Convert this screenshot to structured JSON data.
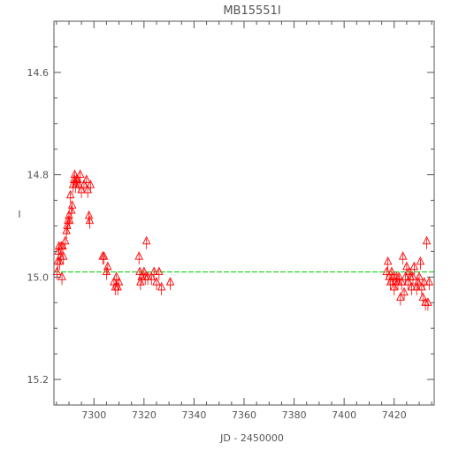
{
  "chart_data": {
    "type": "scatter",
    "title": "MB15551I",
    "xlabel": "JD - 2450000",
    "ylabel": "I",
    "xlim": [
      7284,
      7436
    ],
    "ylim": [
      15.25,
      14.5
    ],
    "y_inverted": true,
    "xticks": [
      7300,
      7320,
      7340,
      7360,
      7380,
      7400,
      7420
    ],
    "yticks": [
      14.6,
      14.8,
      15.0,
      15.2
    ],
    "ytick_labels": [
      "14.6",
      "14.8",
      "15.0",
      "15.2"
    ],
    "grid": false,
    "marker": "triangle",
    "colors": {
      "points": "#ff0000",
      "baseline": "#00cc00",
      "axes": "#555555"
    },
    "baseline": {
      "y": 14.99
    },
    "series": [
      {
        "points": [
          [
            7285.2,
            14.99
          ],
          [
            7285.5,
            14.97
          ],
          [
            7285.8,
            14.95
          ],
          [
            7286.0,
            14.94
          ],
          [
            7286.3,
            14.97
          ],
          [
            7286.6,
            14.96
          ],
          [
            7286.9,
            14.94
          ],
          [
            7287.2,
            15.0
          ],
          [
            7287.5,
            14.94
          ],
          [
            7287.8,
            14.96
          ],
          [
            7288.5,
            14.93
          ],
          [
            7289.0,
            14.91
          ],
          [
            7289.3,
            14.9
          ],
          [
            7289.6,
            14.89
          ],
          [
            7290.0,
            14.88
          ],
          [
            7290.3,
            14.89
          ],
          [
            7290.6,
            14.84
          ],
          [
            7291.0,
            14.87
          ],
          [
            7291.3,
            14.86
          ],
          [
            7291.6,
            14.82
          ],
          [
            7292.0,
            14.81
          ],
          [
            7292.3,
            14.8
          ],
          [
            7292.6,
            14.82
          ],
          [
            7293.0,
            14.81
          ],
          [
            7293.5,
            14.81
          ],
          [
            7294.0,
            14.82
          ],
          [
            7294.5,
            14.8
          ],
          [
            7295.0,
            14.83
          ],
          [
            7296.0,
            14.82
          ],
          [
            7297.0,
            14.81
          ],
          [
            7297.5,
            14.83
          ],
          [
            7298.0,
            14.88
          ],
          [
            7298.3,
            14.89
          ],
          [
            7298.6,
            14.82
          ],
          [
            7303.5,
            14.96
          ],
          [
            7304.0,
            14.96
          ],
          [
            7305.0,
            14.99
          ],
          [
            7305.5,
            14.98
          ],
          [
            7308.0,
            15.01
          ],
          [
            7308.5,
            15.02
          ],
          [
            7309.0,
            15.0
          ],
          [
            7309.5,
            15.02
          ],
          [
            7310.0,
            15.01
          ],
          [
            7318.0,
            14.96
          ],
          [
            7318.3,
            14.99
          ],
          [
            7318.6,
            15.01
          ],
          [
            7319.0,
            15.0
          ],
          [
            7320.0,
            14.99
          ],
          [
            7320.5,
            15.0
          ],
          [
            7321.0,
            14.93
          ],
          [
            7321.5,
            15.0
          ],
          [
            7323.0,
            15.0
          ],
          [
            7324.0,
            14.99
          ],
          [
            7325.0,
            15.01
          ],
          [
            7326.0,
            14.99
          ],
          [
            7327.0,
            15.02
          ],
          [
            7330.5,
            15.01
          ],
          [
            7417.0,
            14.99
          ],
          [
            7417.5,
            14.97
          ],
          [
            7418.0,
            15.0
          ],
          [
            7418.5,
            15.01
          ],
          [
            7419.0,
            14.99
          ],
          [
            7419.5,
            15.0
          ],
          [
            7420.0,
            15.02
          ],
          [
            7420.5,
            15.01
          ],
          [
            7421.0,
            15.0
          ],
          [
            7421.5,
            15.01
          ],
          [
            7422.0,
            15.0
          ],
          [
            7422.5,
            15.04
          ],
          [
            7423.0,
            15.01
          ],
          [
            7423.5,
            14.96
          ],
          [
            7424.0,
            15.03
          ],
          [
            7424.5,
            15.0
          ],
          [
            7425.0,
            14.98
          ],
          [
            7425.5,
            15.01
          ],
          [
            7426.0,
            14.99
          ],
          [
            7426.5,
            15.0
          ],
          [
            7427.0,
            15.02
          ],
          [
            7427.5,
            15.0
          ],
          [
            7428.0,
            14.98
          ],
          [
            7429.0,
            15.02
          ],
          [
            7429.5,
            15.01
          ],
          [
            7430.0,
            15.0
          ],
          [
            7430.5,
            14.97
          ],
          [
            7431.0,
            15.02
          ],
          [
            7431.5,
            15.04
          ],
          [
            7432.0,
            15.01
          ],
          [
            7432.5,
            15.05
          ],
          [
            7433.0,
            14.93
          ],
          [
            7433.5,
            15.05
          ],
          [
            7434.0,
            15.01
          ]
        ]
      }
    ]
  }
}
